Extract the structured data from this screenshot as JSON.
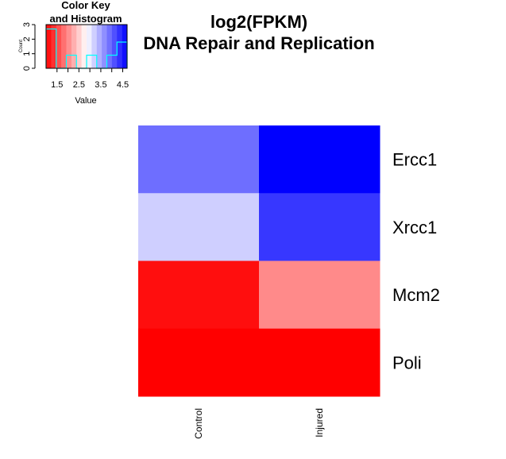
{
  "chart_data": {
    "type": "heatmap",
    "title": "log2(FPKM)",
    "subtitle": "DNA Repair and Replication",
    "rows": [
      "Ercc1",
      "Xrcc1",
      "Mcm2",
      "Poli"
    ],
    "columns": [
      "Control",
      "Injured"
    ],
    "values": [
      [
        3.9,
        4.7
      ],
      [
        3.2,
        4.3
      ],
      [
        1.1,
        2.0
      ],
      [
        1.0,
        1.0
      ]
    ],
    "color_key": {
      "title_line1": "Color Key",
      "title_line2": "and Histogram",
      "xlabel": "Value",
      "ylabel": "Count",
      "xticks": [
        "1.5",
        "2.5",
        "3.5",
        "4.5"
      ],
      "yticks": [
        "0",
        "1",
        "2",
        "3"
      ],
      "xlim": [
        1.0,
        4.7
      ],
      "ylim": [
        0,
        3
      ],
      "colors": {
        "low": "#ff0000",
        "mid": "#ffffff",
        "high": "#0000ff"
      },
      "histogram_color": "#00ffff"
    }
  }
}
